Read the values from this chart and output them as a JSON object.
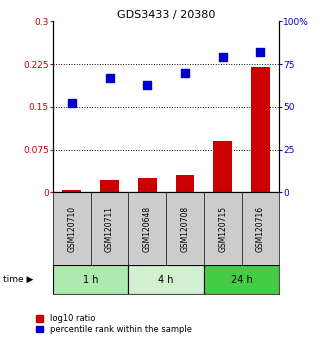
{
  "title": "GDS3433 / 20380",
  "samples": [
    "GSM120710",
    "GSM120711",
    "GSM120648",
    "GSM120708",
    "GSM120715",
    "GSM120716"
  ],
  "log10_ratio": [
    0.005,
    0.022,
    0.025,
    0.03,
    0.09,
    0.22
  ],
  "percentile_rank": [
    52,
    67,
    63,
    70,
    79,
    82
  ],
  "groups": [
    {
      "label": "1 h",
      "start": 0,
      "end": 1,
      "color": "#aeeaae"
    },
    {
      "label": "4 h",
      "start": 2,
      "end": 3,
      "color": "#d0f0d0"
    },
    {
      "label": "24 h",
      "start": 4,
      "end": 5,
      "color": "#44cc44"
    }
  ],
  "ylim_left": [
    0,
    0.3
  ],
  "ylim_right": [
    0,
    100
  ],
  "yticks_left": [
    0,
    0.075,
    0.15,
    0.225,
    0.3
  ],
  "ytick_labels_left": [
    "0",
    "0.075",
    "0.15",
    "0.225",
    "0.3"
  ],
  "yticks_right": [
    0,
    25,
    50,
    75,
    100
  ],
  "ytick_labels_right": [
    "0",
    "25",
    "50",
    "75",
    "100%"
  ],
  "hlines": [
    0.075,
    0.15,
    0.225
  ],
  "bar_color": "#cc0000",
  "dot_color": "#0000cc",
  "bar_width": 0.5,
  "dot_size": 28,
  "left_tick_color": "#cc0000",
  "right_tick_color": "#0000cc",
  "legend_items": [
    {
      "label": "log10 ratio",
      "color": "#cc0000"
    },
    {
      "label": "percentile rank within the sample",
      "color": "#0000cc"
    }
  ],
  "background_color": "#ffffff",
  "sample_box_color": "#cccccc",
  "title_fontsize": 8,
  "tick_fontsize": 6.5,
  "sample_fontsize": 5.5,
  "group_fontsize": 7,
  "legend_fontsize": 6
}
